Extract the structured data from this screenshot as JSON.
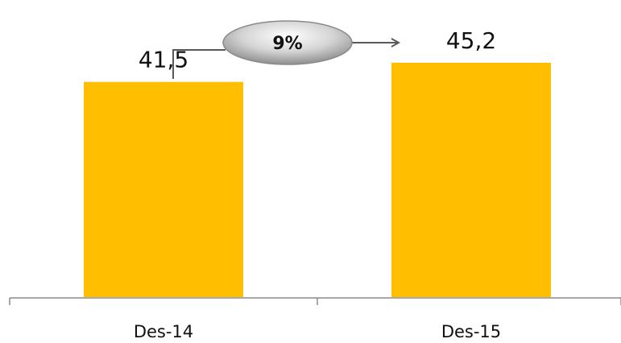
{
  "chart_data": {
    "type": "bar",
    "categories": [
      "Des-14",
      "Des-15"
    ],
    "values": [
      41.5,
      45.2
    ],
    "value_labels": [
      "41,5",
      "45,2"
    ],
    "title": "",
    "xlabel": "",
    "ylabel": "",
    "grid": false,
    "bar_color": "#FFBE00",
    "annotations": [
      {
        "type": "growth-arrow",
        "from": "Des-14",
        "to": "Des-15",
        "label": "9%"
      }
    ]
  }
}
